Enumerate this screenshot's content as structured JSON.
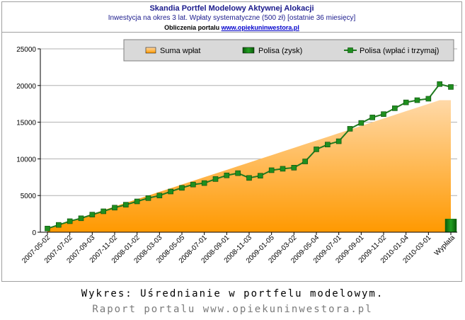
{
  "header": {
    "title": "Skandia Portfel Modelowy Aktywnej Alokacji",
    "subtitle": "Inwestycja na okres 3 lat. Wpłaty systematyczne (500 zł) [ostatnie 36 miesięcy]",
    "source_prefix": "Obliczenia portalu",
    "source_link": "www.opiekuninwestora.pl"
  },
  "caption": {
    "line1": "Wykres: Uśrednianie w portfelu modelowym.",
    "line2": "Raport portalu www.opiekuninwestora.pl"
  },
  "colors": {
    "area_top": "#ffd9a8",
    "area_bottom": "#ff9900",
    "line": "#1f7a1f",
    "marker": "#1f8f1f",
    "bar": "#0a6b0a",
    "legend_bg": "#d9d9d9"
  },
  "chart_data": {
    "type": "area+line+bar",
    "ylim": [
      0,
      25000
    ],
    "yticks": [
      0,
      5000,
      10000,
      15000,
      20000,
      25000
    ],
    "xtick_labels": [
      "2007-05-02",
      "2007-07-02",
      "2007-09-03",
      "2007-11-02",
      "2008-01-02",
      "2008-03-03",
      "2008-05-05",
      "2008-07-01",
      "2008-09-01",
      "2008-11-03",
      "2009-01-05",
      "2009-03-02",
      "2009-05-04",
      "2009-07-01",
      "2009-09-01",
      "2009-11-02",
      "2010-01-04",
      "2010-03-01",
      "Wypłata"
    ],
    "legend": [
      "Suma wpłat",
      "Polisa (zysk)",
      "Polisa (wpłać i trzymaj)"
    ],
    "series": [
      {
        "name": "Suma wpłat",
        "kind": "area",
        "values": [
          500,
          1000,
          1500,
          2000,
          2500,
          3000,
          3500,
          4000,
          4500,
          5000,
          5500,
          6000,
          6500,
          7000,
          7500,
          8000,
          8500,
          9000,
          9500,
          10000,
          10500,
          11000,
          11500,
          12000,
          12500,
          13000,
          13500,
          14000,
          14500,
          15000,
          15500,
          16000,
          16500,
          17000,
          17500,
          18000,
          18000
        ]
      },
      {
        "name": "Polisa (wpłać i trzymaj)",
        "kind": "line",
        "values": [
          500,
          1000,
          1500,
          1900,
          2400,
          2850,
          3350,
          3750,
          4200,
          4650,
          5000,
          5550,
          6050,
          6500,
          6700,
          7250,
          7750,
          8050,
          7400,
          7700,
          8450,
          8650,
          8800,
          9650,
          11300,
          11950,
          12400,
          14100,
          14900,
          15650,
          16100,
          16900,
          17700,
          18000,
          18200,
          20200,
          19800
        ]
      },
      {
        "name": "Polisa (zysk)",
        "kind": "bar",
        "category": "Wypłata",
        "value": 1800
      }
    ]
  }
}
